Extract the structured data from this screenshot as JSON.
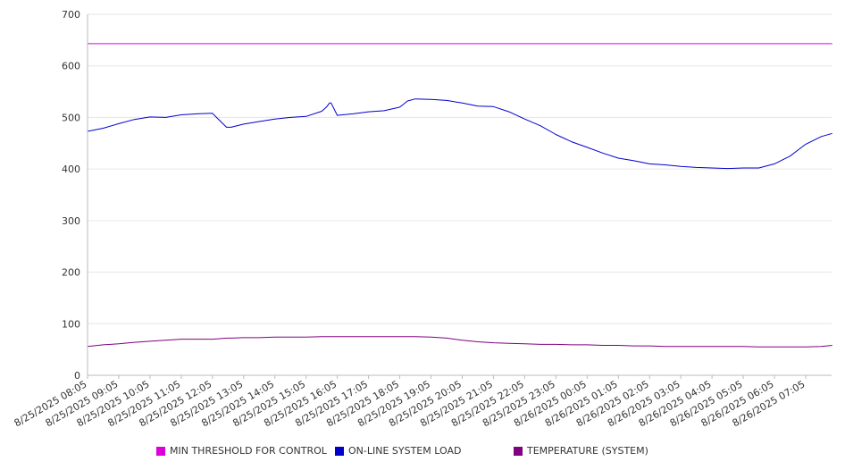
{
  "chart_data": {
    "type": "line",
    "title": "",
    "xlabel": "",
    "ylabel": "",
    "ylim": [
      0,
      700
    ],
    "yticks": [
      0,
      100,
      200,
      300,
      400,
      500,
      600,
      700
    ],
    "grid": true,
    "legend_position": "bottom",
    "x_tick_labels": [
      "8/25/2025 08:05",
      "8/25/2025 09:05",
      "8/25/2025 10:05",
      "8/25/2025 11:05",
      "8/25/2025 12:05",
      "8/25/2025 13:05",
      "8/25/2025 14:05",
      "8/25/2025 15:05",
      "8/25/2025 16:05",
      "8/25/2025 17:05",
      "8/25/2025 18:05",
      "8/25/2025 19:05",
      "8/25/2025 20:05",
      "8/25/2025 21:05",
      "8/25/2025 22:05",
      "8/25/2025 23:05",
      "8/26/2025 00:05",
      "8/26/2025 01:05",
      "8/26/2025 02:05",
      "8/26/2025 03:05",
      "8/26/2025 04:05",
      "8/26/2025 05:05",
      "8/26/2025 06:05",
      "8/26/2025 07:05"
    ],
    "x_time_hours": [
      0,
      0.5,
      1,
      1.5,
      2,
      2.5,
      3,
      3.5,
      4,
      4.25,
      4.45,
      4.6,
      5,
      5.5,
      6,
      6.5,
      7,
      7.5,
      7.65,
      7.75,
      7.8,
      8,
      8.5,
      9,
      9.5,
      10,
      10.25,
      10.5,
      11,
      11.5,
      12,
      12.5,
      13,
      13.5,
      14,
      14.5,
      15,
      15.5,
      16,
      16.5,
      17,
      17.5,
      18,
      18.5,
      19,
      19.5,
      20,
      20.5,
      21,
      21.5,
      22,
      22.5,
      23,
      23.5,
      23.85
    ],
    "series": [
      {
        "name": "MIN THRESHOLD FOR CONTROL",
        "color": "#dd00dd",
        "values": [
          643,
          643,
          643,
          643,
          643,
          643,
          643,
          643,
          643,
          643,
          643,
          643,
          643,
          643,
          643,
          643,
          643,
          643,
          643,
          643,
          643,
          643,
          643,
          643,
          643,
          643,
          643,
          643,
          643,
          643,
          643,
          643,
          643,
          643,
          643,
          643,
          643,
          643,
          643,
          643,
          643,
          643,
          643,
          643,
          643,
          643,
          643,
          643,
          643,
          643,
          643,
          643,
          643,
          643,
          643
        ]
      },
      {
        "name": "ON-LINE SYSTEM LOAD",
        "color": "#0000cc",
        "values": [
          473,
          479,
          488,
          496,
          501,
          500,
          505,
          507,
          508,
          493,
          481,
          481,
          487,
          492,
          497,
          500,
          502,
          512,
          520,
          528,
          528,
          504,
          507,
          511,
          513,
          520,
          532,
          536,
          535,
          533,
          528,
          522,
          521,
          511,
          497,
          484,
          467,
          453,
          442,
          431,
          421,
          416,
          410,
          408,
          405,
          403,
          402,
          401,
          402,
          402,
          410,
          425,
          448,
          463,
          469
        ]
      },
      {
        "name": "TEMPERATURE (SYSTEM)",
        "color": "#800080",
        "values": [
          56,
          59,
          61,
          64,
          66,
          68,
          70,
          70,
          70,
          71,
          72,
          72,
          73,
          73,
          74,
          74,
          74,
          75,
          75,
          75,
          75,
          75,
          75,
          75,
          75,
          75,
          75,
          75,
          74,
          72,
          68,
          65,
          63,
          62,
          61,
          60,
          60,
          59,
          59,
          58,
          58,
          57,
          57,
          56,
          56,
          56,
          56,
          56,
          56,
          55,
          55,
          55,
          55,
          56,
          58
        ]
      }
    ]
  },
  "colors": {
    "axis": "#bbbbbb",
    "grid": "#e6e6e6",
    "text": "#333333"
  }
}
